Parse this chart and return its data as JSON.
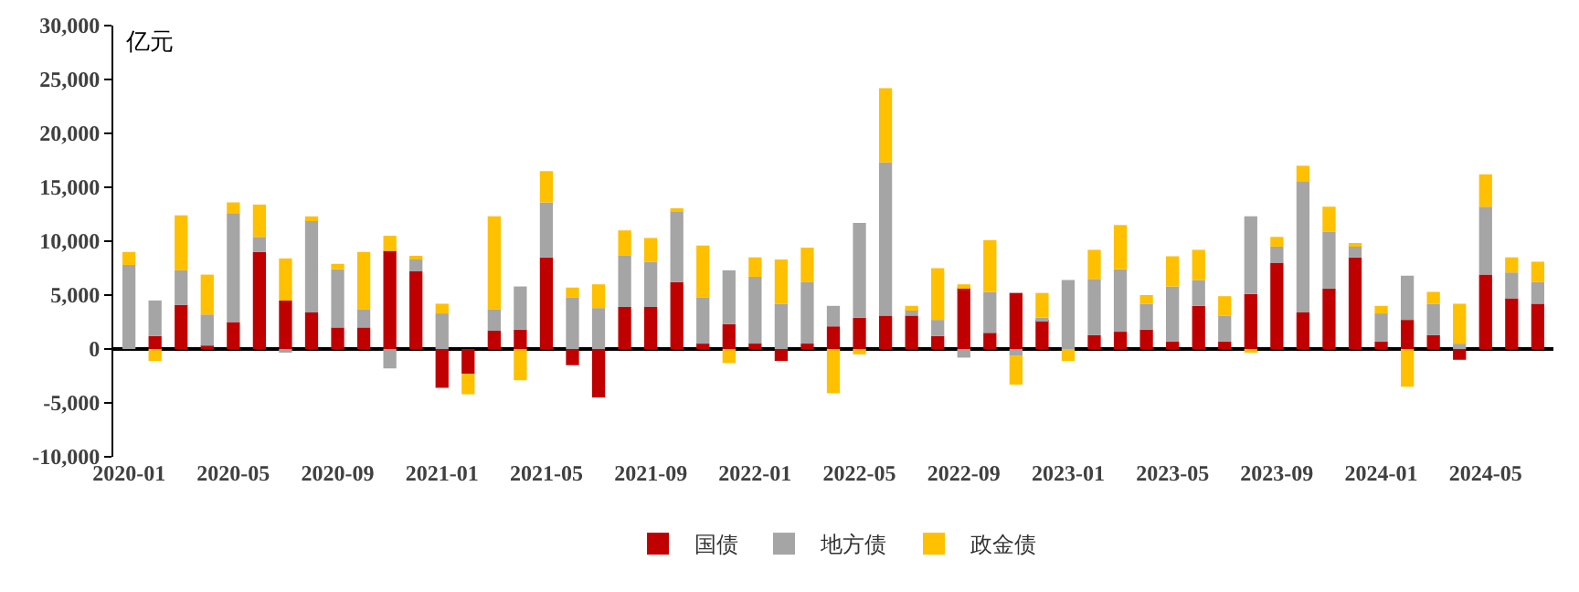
{
  "chart_data": {
    "type": "bar",
    "stacked": true,
    "ylabel": "亿元",
    "categories": [
      "2020-01",
      null,
      null,
      null,
      "2020-05",
      null,
      null,
      null,
      "2020-09",
      null,
      null,
      null,
      "2021-01",
      null,
      null,
      null,
      "2021-05",
      null,
      null,
      null,
      "2021-09",
      null,
      null,
      null,
      "2022-01",
      null,
      null,
      null,
      "2022-05",
      null,
      null,
      null,
      "2022-09",
      null,
      null,
      null,
      "2023-01",
      null,
      null,
      null,
      "2023-05",
      null,
      null,
      null,
      "2023-09",
      null,
      null,
      null,
      "2024-01",
      null,
      null,
      null,
      "2024-05",
      null,
      null
    ],
    "series": [
      {
        "name": "国债",
        "color": "#c00000",
        "values": [
          0,
          1200,
          4100,
          300,
          2500,
          9000,
          4500,
          3400,
          2000,
          2000,
          9100,
          7200,
          -3600,
          -2300,
          1700,
          1800,
          8500,
          -1500,
          -4500,
          3900,
          3900,
          6200,
          500,
          2300,
          500,
          -1100,
          500,
          2100,
          2900,
          3100,
          3100,
          1200,
          5700,
          1500,
          5200,
          2700,
          0,
          1300,
          1600,
          1800,
          700,
          4000,
          700,
          5100,
          8000,
          3400,
          5600,
          8500,
          700,
          2700,
          1300,
          -1000,
          6900,
          4700,
          4200
        ]
      },
      {
        "name": "地方债",
        "color": "#a5a5a5",
        "values": [
          7800,
          3300,
          3200,
          2900,
          10100,
          1400,
          -300,
          8600,
          5400,
          1700,
          -1800,
          1200,
          3300,
          null,
          2000,
          4000,
          5100,
          4800,
          3800,
          4800,
          4200,
          6600,
          4300,
          5000,
          6200,
          4200,
          5700,
          1900,
          8800,
          14200,
          600,
          1500,
          -800,
          3800,
          -600,
          200,
          6400,
          5200,
          5800,
          2400,
          5100,
          2400,
          2400,
          7200,
          1500,
          12100,
          5300,
          1100,
          2600,
          4100,
          2900,
          500,
          6300,
          2400,
          2000
        ]
      },
      {
        "name": "政金债",
        "color": "#ffc000",
        "values": [
          1200,
          -1100,
          5100,
          3700,
          1000,
          3000,
          3900,
          300,
          500,
          5300,
          1400,
          100,
          900,
          -1900,
          8600,
          -2900,
          2900,
          900,
          2200,
          2300,
          2200,
          200,
          4800,
          -1300,
          1800,
          4100,
          3200,
          -4100,
          -500,
          6900,
          300,
          4800,
          300,
          4800,
          -2700,
          2300,
          -1100,
          2700,
          4100,
          800,
          2800,
          2800,
          1800,
          -300,
          900,
          1500,
          2300,
          200,
          700,
          -3500,
          1100,
          3700,
          3000,
          1400,
          1900
        ]
      }
    ],
    "ylim": [
      -10000,
      30000
    ],
    "yticks": [
      {
        "value": -10000,
        "label": "-10,000"
      },
      {
        "value": -5000,
        "label": "-5,000"
      },
      0,
      {
        "value": 5000,
        "label": "5,000"
      },
      {
        "value": 10000,
        "label": "10,000"
      },
      {
        "value": 15000,
        "label": "15,000"
      },
      {
        "value": 20000,
        "label": "20,000"
      },
      {
        "value": 25000,
        "label": "25,000"
      },
      {
        "value": 30000,
        "label": "30,000"
      }
    ],
    "legend": "bottom"
  }
}
